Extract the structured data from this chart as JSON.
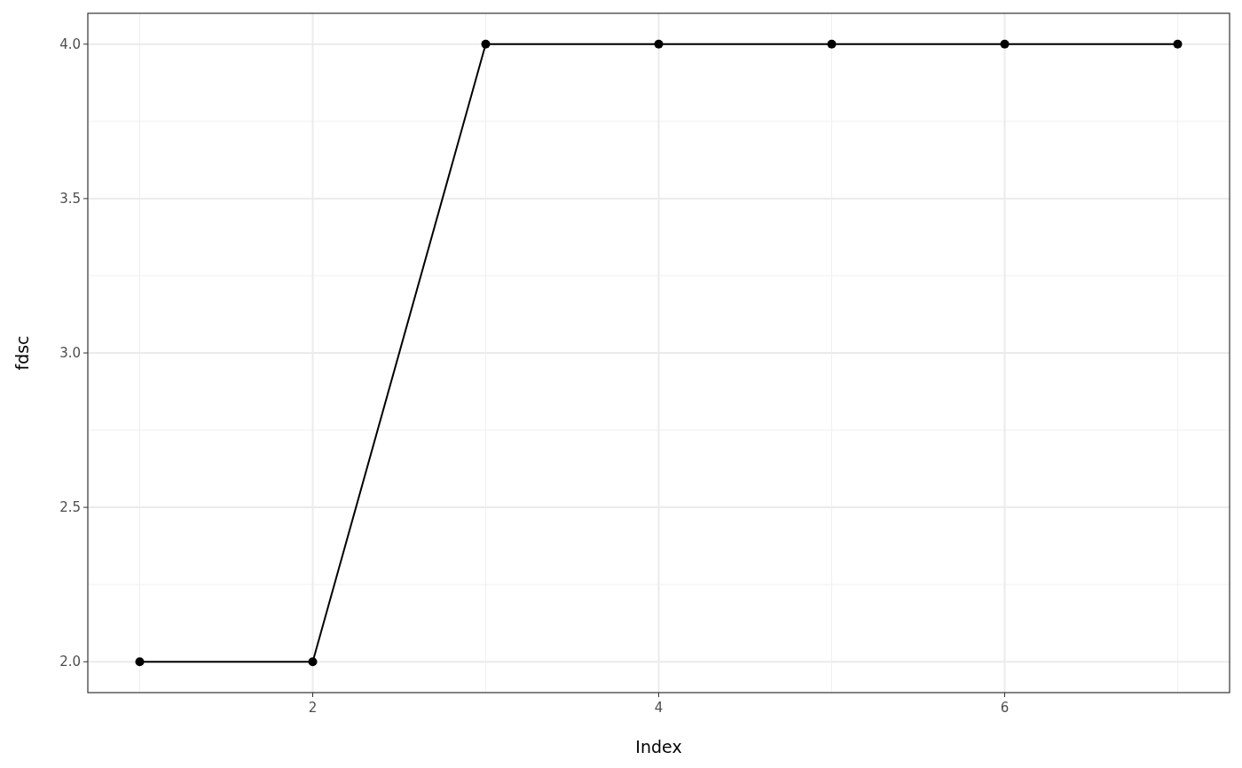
{
  "chart_data": {
    "type": "line",
    "xlabel": "Index",
    "ylabel": "fdsc",
    "x": [
      1,
      2,
      3,
      4,
      5,
      6,
      7
    ],
    "series": [
      {
        "color": "#000000",
        "values": [
          2,
          2,
          4,
          4,
          4,
          4,
          4
        ]
      }
    ],
    "xlim": [
      0.7,
      7.3
    ],
    "ylim": [
      1.9,
      4.1
    ],
    "xticks": [
      2,
      4,
      6
    ],
    "yticks": [
      {
        "value": 2,
        "label": "2.0"
      },
      {
        "value": 2.5,
        "label": "2.5"
      },
      {
        "value": 3,
        "label": "3.0"
      },
      {
        "value": 3.5,
        "label": "3.5"
      },
      {
        "value": 4,
        "label": "4.0"
      }
    ],
    "grid": true,
    "marker": "circle",
    "line_style": "solid"
  }
}
